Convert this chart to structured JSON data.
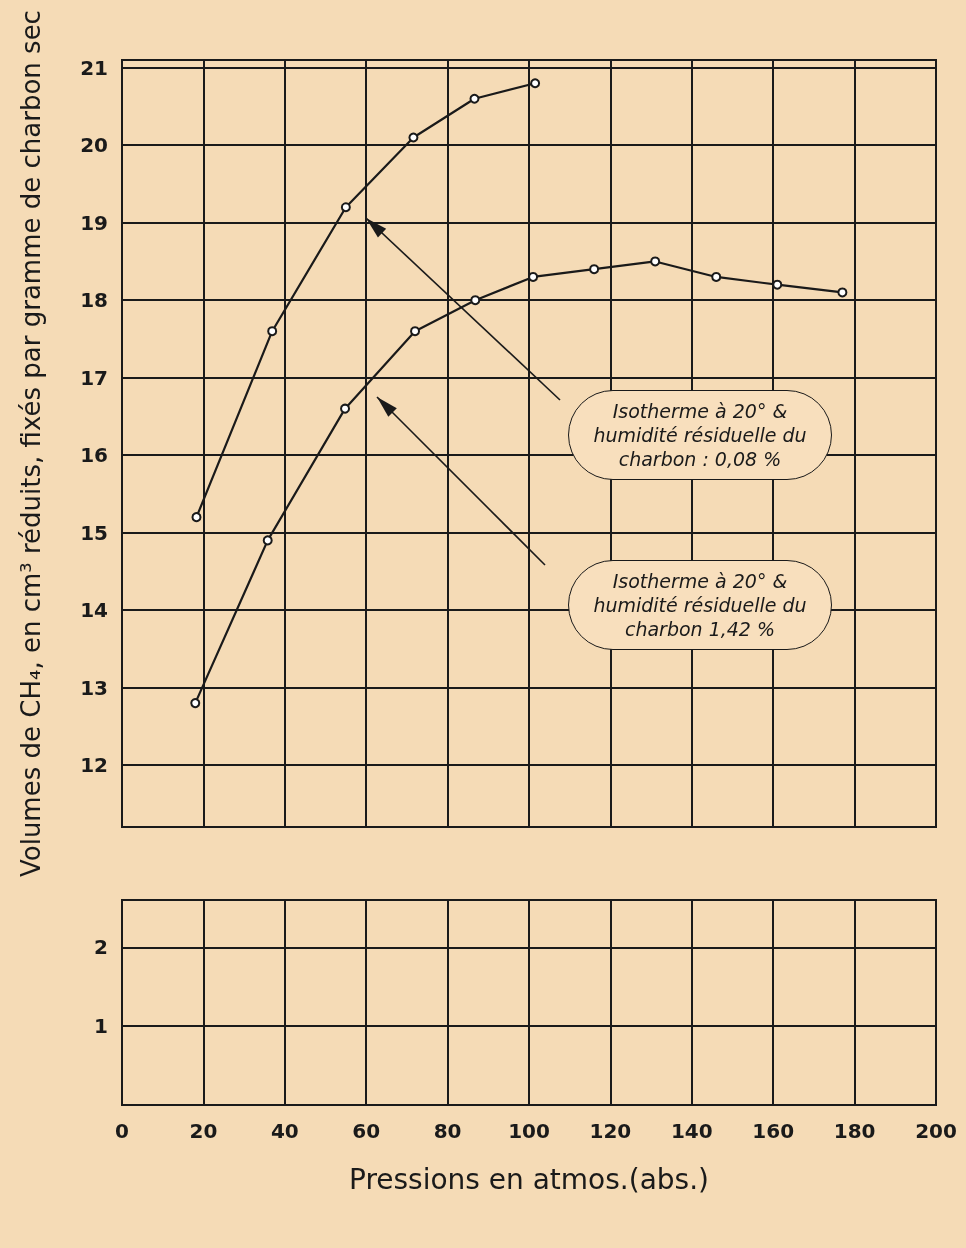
{
  "chart_data": [
    {
      "type": "line",
      "ylabel": "Volumes de CH₄, en cm³ réduits, fixés par gramme de charbon sec",
      "xlim": [
        0,
        200
      ],
      "xticks": [
        0,
        20,
        40,
        60,
        80,
        100,
        120,
        140,
        160,
        180,
        200
      ],
      "ylim": [
        11.2,
        21.1
      ],
      "yticks": [
        12,
        13,
        14,
        15,
        16,
        17,
        18,
        19,
        20,
        21
      ],
      "tick_labels": "y",
      "grid": true,
      "marker": "circle",
      "line_style": "solid",
      "annotations": [
        "Isotherme à 20° & humidité résiduelle du charbon : 0,08 %",
        "Isotherme à 20° & humidité résiduelle du charbon 1,42 %"
      ],
      "series": [
        {
          "color": "#1a1a1a",
          "x": [
            18.3,
            36.9,
            55,
            71.6,
            86.6,
            101.5
          ],
          "values": [
            15.2,
            17.6,
            19.2,
            20.1,
            20.6,
            20.8
          ]
        },
        {
          "color": "#1a1a1a",
          "x": [
            18,
            35.8,
            54.8,
            72,
            86.8,
            101,
            116,
            131,
            146,
            161,
            177
          ],
          "values": [
            12.8,
            14.9,
            16.6,
            17.6,
            18.0,
            18.3,
            18.4,
            18.5,
            18.3,
            18.2,
            18.1
          ]
        }
      ]
    },
    {
      "type": "line",
      "xlabel": "Pressions en atmos.(abs.)",
      "xlim": [
        0,
        200
      ],
      "xticks": [
        0,
        20,
        40,
        60,
        80,
        100,
        120,
        140,
        160,
        180,
        200
      ],
      "ylim": [
        0,
        2.6
      ],
      "yticks": [
        1,
        2
      ],
      "grid": true
    }
  ]
}
